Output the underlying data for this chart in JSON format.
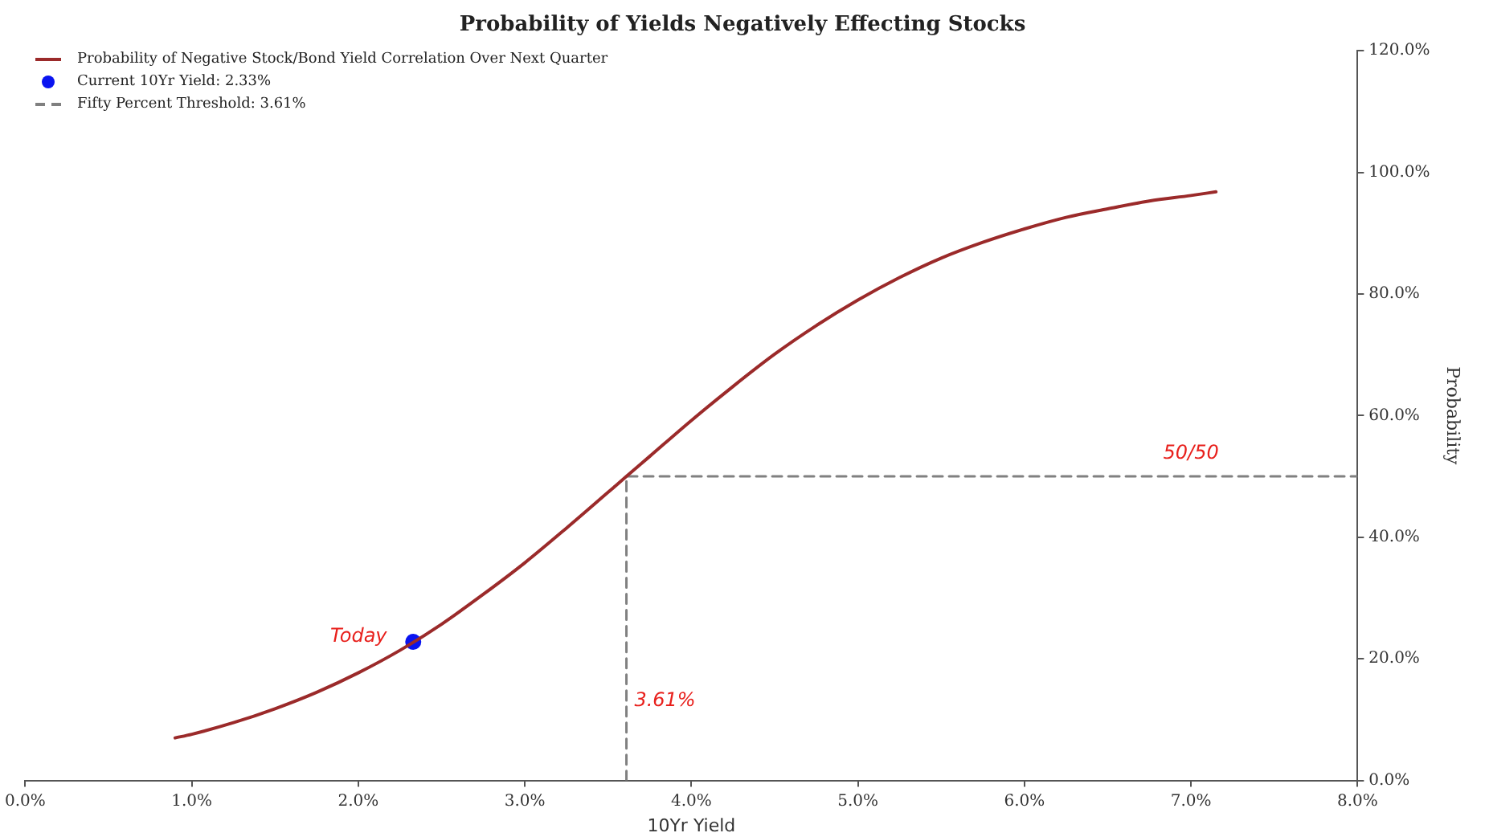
{
  "chart_data": {
    "type": "line",
    "title": "Probability of Yields Negatively Effecting Stocks",
    "xlabel": "10Yr Yield",
    "ylabel": "Probability",
    "xlim": [
      0,
      8
    ],
    "xticks": [
      {
        "value": 0,
        "label": "0.0%"
      },
      {
        "value": 1,
        "label": "1.0%"
      },
      {
        "value": 2,
        "label": "2.0%"
      },
      {
        "value": 3,
        "label": "3.0%"
      },
      {
        "value": 4,
        "label": "4.0%"
      },
      {
        "value": 5,
        "label": "5.0%"
      },
      {
        "value": 6,
        "label": "6.0%"
      },
      {
        "value": 7,
        "label": "7.0%"
      },
      {
        "value": 8,
        "label": "8.0%"
      }
    ],
    "ylim": [
      0,
      120
    ],
    "yticks": [
      {
        "value": 0,
        "label": "0.0%"
      },
      {
        "value": 20,
        "label": "20.0%"
      },
      {
        "value": 40,
        "label": "40.0%"
      },
      {
        "value": 60,
        "label": "60.0%"
      },
      {
        "value": 80,
        "label": "80.0%"
      },
      {
        "value": 100,
        "label": "100.0%"
      },
      {
        "value": 120,
        "label": "120.0%"
      }
    ],
    "grid": false,
    "legend": "top left",
    "series": [
      {
        "type": "line",
        "name": "Probability of Negative Stock/Bond Yield Correlation Over Next Quarter",
        "color": "#9b2a2a",
        "marker": "none",
        "line_style": "solid",
        "x": [
          0.9,
          1.0,
          1.25,
          1.5,
          1.75,
          2.0,
          2.25,
          2.5,
          2.75,
          3.0,
          3.25,
          3.5,
          3.61,
          3.75,
          4.0,
          4.25,
          4.5,
          4.75,
          5.0,
          5.25,
          5.5,
          5.75,
          6.0,
          6.25,
          6.5,
          6.75,
          7.0,
          7.15
        ],
        "values": [
          7.0,
          7.6,
          9.5,
          11.8,
          14.5,
          17.7,
          21.4,
          25.7,
          30.6,
          35.8,
          41.5,
          47.4,
          50.0,
          53.3,
          59.2,
          64.8,
          70.1,
          74.8,
          79.0,
          82.7,
          85.9,
          88.5,
          90.7,
          92.6,
          94.0,
          95.3,
          96.2,
          96.8
        ]
      },
      {
        "type": "scatter",
        "name": "Current 10Yr Yield: 2.33%",
        "color": "#0a14f0",
        "marker": "circle",
        "x": [
          2.33
        ],
        "values": [
          22.8
        ]
      },
      {
        "type": "line",
        "name": "Fifty Percent Threshold: 3.61%",
        "color": "#808080",
        "marker": "none",
        "line_style": "dashed",
        "x": [
          3.61,
          3.61,
          8
        ],
        "values": [
          0,
          50,
          50
        ]
      }
    ],
    "annotations": [
      {
        "text": "Today",
        "x": 2.33,
        "y": 22.8
      },
      {
        "text": "50/50",
        "x": 7.0,
        "y": 50
      },
      {
        "text": "3.61%",
        "x": 3.61,
        "y": 13
      }
    ]
  }
}
